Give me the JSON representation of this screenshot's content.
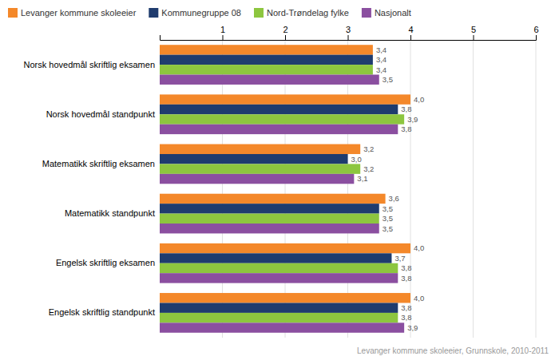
{
  "chart_data": {
    "type": "bar",
    "orientation": "horizontal",
    "categories": [
      "Norsk hovedmål skriftlig eksamen",
      "Norsk hovedmål standpunkt",
      "Matematikk skriftlig eksamen",
      "Matematikk standpunkt",
      "Engelsk skriftlig eksamen",
      "Engelsk skriftlig standpunkt"
    ],
    "series": [
      {
        "name": "Levanger kommune skoleeier",
        "color": "#F4882A",
        "values": [
          3.4,
          4.0,
          3.2,
          3.6,
          4.0,
          4.0
        ],
        "value_labels": [
          "3,4",
          "4,0",
          "3,2",
          "3,6",
          "4,0",
          "4,0"
        ]
      },
      {
        "name": "Kommunegruppe 08",
        "color": "#1F3C6E",
        "values": [
          3.4,
          3.8,
          3.0,
          3.5,
          3.7,
          3.8
        ],
        "value_labels": [
          "3,4",
          "3,8",
          "3,0",
          "3,5",
          "3,7",
          "3,8"
        ]
      },
      {
        "name": "Nord-Trøndelag fylke",
        "color": "#8DC63F",
        "values": [
          3.4,
          3.9,
          3.2,
          3.5,
          3.8,
          3.8
        ],
        "value_labels": [
          "3,4",
          "3,9",
          "3,2",
          "3,5",
          "3,8",
          "3,8"
        ]
      },
      {
        "name": "Nasjonalt",
        "color": "#8B4FA0",
        "values": [
          3.5,
          3.8,
          3.1,
          3.5,
          3.8,
          3.9
        ],
        "value_labels": [
          "3,5",
          "3,8",
          "3,1",
          "3,5",
          "3,8",
          "3,9"
        ]
      }
    ],
    "xlim": [
      0,
      6
    ],
    "xticks": [
      1,
      2,
      3,
      4,
      5,
      6
    ],
    "grid": true,
    "data_labels": true,
    "legend": "top-left",
    "footnote": "Levanger kommune skoleeier, Grunnskole, 2010-2011"
  }
}
